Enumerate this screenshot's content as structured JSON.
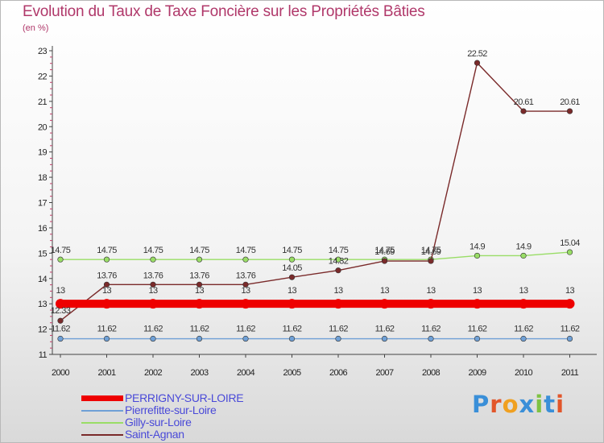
{
  "chart_data": {
    "type": "line",
    "title": "Evolution du Taux de Taxe Foncière sur les Propriétés Bâties",
    "ylabel": "(en %)",
    "xlabel": "",
    "ylim": [
      11,
      23
    ],
    "yticks": [
      "11",
      "12",
      "13",
      "14",
      "15",
      "16",
      "17",
      "18",
      "19",
      "20",
      "21",
      "22",
      "23"
    ],
    "categories": [
      "2000",
      "2001",
      "2002",
      "2003",
      "2004",
      "2005",
      "2006",
      "2007",
      "2008",
      "2009",
      "2010",
      "2011"
    ],
    "series": [
      {
        "name": "PERRIGNY-SUR-LOIRE",
        "color": "#ee0000",
        "values": [
          13,
          13,
          13,
          13,
          13,
          13,
          13,
          13,
          13,
          13,
          13,
          13
        ],
        "labels": [
          "13",
          "13",
          "13",
          "13",
          "13",
          "13",
          "13",
          "13",
          "13",
          "13",
          "13",
          "13"
        ]
      },
      {
        "name": "Pierrefitte-sur-Loire",
        "color": "#6fa0d6",
        "values": [
          11.62,
          11.62,
          11.62,
          11.62,
          11.62,
          11.62,
          11.62,
          11.62,
          11.62,
          11.62,
          11.62,
          11.62
        ],
        "labels": [
          "11.62",
          "11.62",
          "11.62",
          "11.62",
          "11.62",
          "11.62",
          "11.62",
          "11.62",
          "11.62",
          "11.62",
          "11.62",
          "11.62"
        ]
      },
      {
        "name": "Gilly-sur-Loire",
        "color": "#99dd66",
        "values": [
          14.75,
          14.75,
          14.75,
          14.75,
          14.75,
          14.75,
          14.75,
          14.75,
          14.75,
          14.9,
          14.9,
          15.04
        ],
        "labels": [
          "14.75",
          "14.75",
          "14.75",
          "14.75",
          "14.75",
          "14.75",
          "14.75",
          "14.75",
          "14.75",
          "14.9",
          "14.9",
          "15.04"
        ]
      },
      {
        "name": "Saint-Agnan",
        "color": "#7a2a2a",
        "values": [
          12.33,
          13.76,
          13.76,
          13.76,
          13.76,
          14.05,
          14.32,
          14.69,
          14.69,
          22.52,
          20.61,
          20.61
        ],
        "labels": [
          "12.33",
          "13.76",
          "13.76",
          "13.76",
          "13.76",
          "14.05",
          "14.32",
          "14.69",
          "14.69",
          "22.52",
          "20.61",
          "20.61"
        ]
      }
    ],
    "legend_position": "bottom-left"
  },
  "brand": {
    "text": "Proxiti",
    "colors": [
      "#3a8fd8",
      "#e2562a",
      "#f0a020",
      "#3a8fd8",
      "#7ec242",
      "#3a8fd8",
      "#e2562a"
    ]
  }
}
